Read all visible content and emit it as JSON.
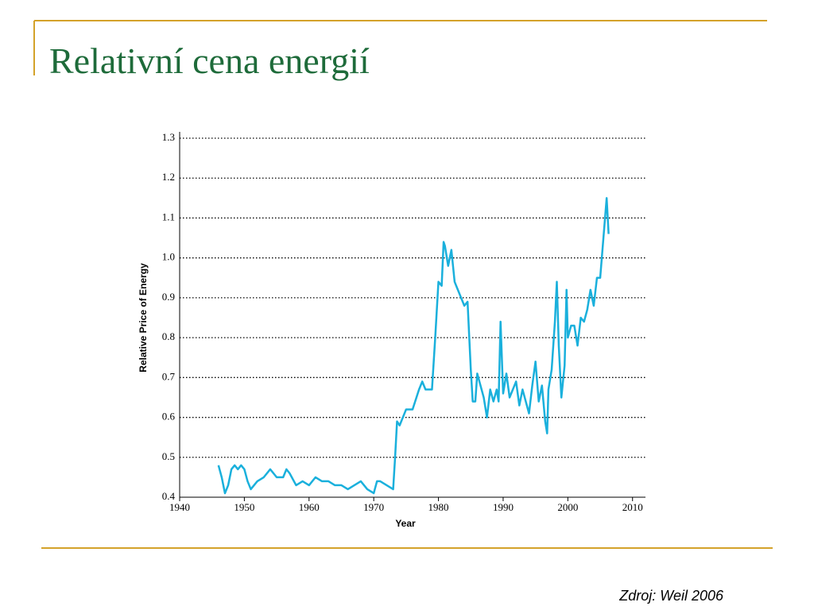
{
  "title": "Relativní cena energií",
  "source": "Zdroj: Weil 2006",
  "chart_data": {
    "type": "line",
    "xlabel": "Year",
    "ylabel": "Relative Price of Energy",
    "xlim": [
      1940,
      2012
    ],
    "ylim": [
      0.4,
      1.3
    ],
    "xticks": [
      1940,
      1950,
      1960,
      1970,
      1980,
      1990,
      2000,
      2010
    ],
    "yticks": [
      {
        "value": 0.4,
        "label": "0.4"
      },
      {
        "value": 0.5,
        "label": "0.5"
      },
      {
        "value": 0.6,
        "label": "0.6"
      },
      {
        "value": 0.7,
        "label": "0.7"
      },
      {
        "value": 0.8,
        "label": "0.8"
      },
      {
        "value": 0.9,
        "label": "0.9"
      },
      {
        "value": 1.0,
        "label": "1.0"
      },
      {
        "value": 1.1,
        "label": "1.1"
      },
      {
        "value": 1.2,
        "label": "1.2"
      },
      {
        "value": 1.3,
        "label": "1.3"
      }
    ],
    "grid": true,
    "series": [
      {
        "color": "#1ab0dc",
        "x": [
          1946,
          1946.5,
          1947,
          1947.5,
          1948,
          1948.5,
          1949,
          1949.5,
          1950,
          1950.5,
          1951,
          1952,
          1953,
          1954,
          1955,
          1956,
          1956.5,
          1957,
          1958,
          1959,
          1960,
          1961,
          1962,
          1963,
          1964,
          1965,
          1966,
          1967,
          1968,
          1969,
          1970,
          1970.5,
          1971,
          1972,
          1973,
          1973.3,
          1973.6,
          1974,
          1975,
          1976,
          1977,
          1977.5,
          1978,
          1979,
          1979.5,
          1980,
          1980.5,
          1980.8,
          1981,
          1981.5,
          1982,
          1982.5,
          1983,
          1984,
          1984.5,
          1985,
          1985.3,
          1985.7,
          1986,
          1987,
          1987.5,
          1988,
          1988.5,
          1989,
          1989.3,
          1989.6,
          1990,
          1990.5,
          1991,
          1992,
          1992.5,
          1993,
          1994,
          1994.5,
          1995,
          1995.5,
          1996,
          1996.5,
          1996.8,
          1997,
          1997.5,
          1998,
          1998.3,
          1998.6,
          1999,
          1999.5,
          1999.8,
          2000,
          2000.5,
          2001,
          2001.5,
          2002,
          2002.5,
          2003,
          2003.5,
          2004,
          2004.5,
          2005,
          2005.5,
          2006,
          2006.3
        ],
        "values": [
          0.48,
          0.45,
          0.41,
          0.43,
          0.47,
          0.48,
          0.47,
          0.48,
          0.47,
          0.44,
          0.42,
          0.44,
          0.45,
          0.47,
          0.45,
          0.45,
          0.47,
          0.46,
          0.43,
          0.44,
          0.43,
          0.45,
          0.44,
          0.44,
          0.43,
          0.43,
          0.42,
          0.43,
          0.44,
          0.42,
          0.41,
          0.44,
          0.44,
          0.43,
          0.42,
          0.5,
          0.59,
          0.58,
          0.62,
          0.62,
          0.67,
          0.69,
          0.67,
          0.67,
          0.8,
          0.94,
          0.93,
          1.04,
          1.03,
          0.98,
          1.02,
          0.94,
          0.92,
          0.88,
          0.89,
          0.72,
          0.64,
          0.64,
          0.71,
          0.65,
          0.6,
          0.67,
          0.64,
          0.67,
          0.64,
          0.84,
          0.66,
          0.71,
          0.65,
          0.69,
          0.63,
          0.67,
          0.61,
          0.68,
          0.74,
          0.64,
          0.68,
          0.59,
          0.56,
          0.67,
          0.72,
          0.84,
          0.94,
          0.78,
          0.65,
          0.73,
          0.92,
          0.8,
          0.83,
          0.83,
          0.78,
          0.85,
          0.84,
          0.87,
          0.92,
          0.88,
          0.95,
          0.95,
          1.05,
          1.15,
          1.06
        ]
      }
    ]
  }
}
